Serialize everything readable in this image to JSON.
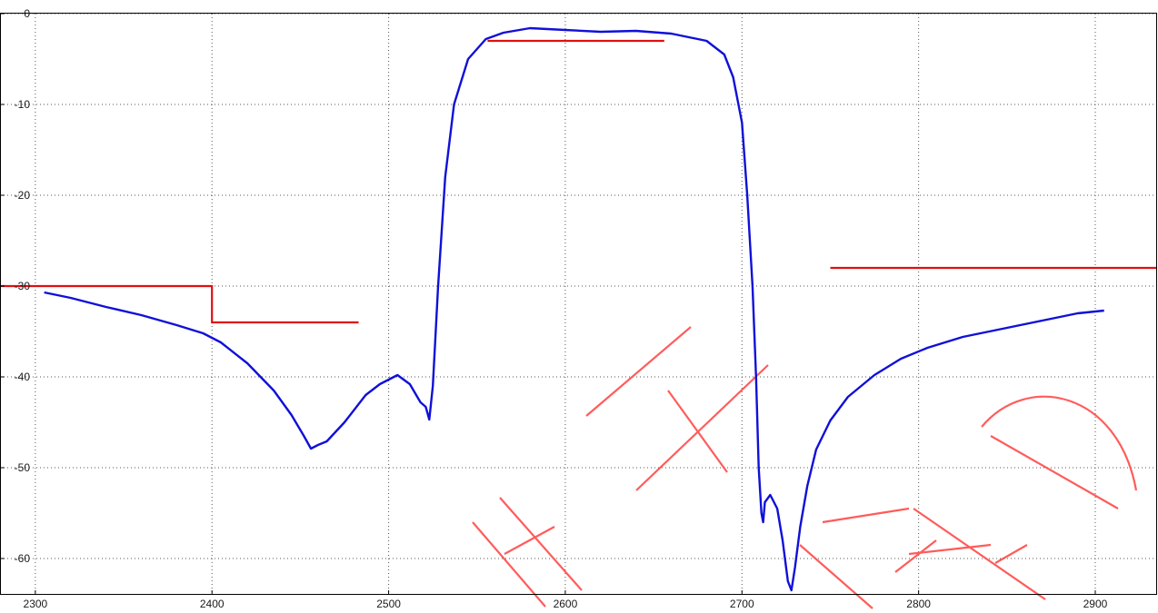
{
  "chart_data": {
    "type": "line",
    "title": "",
    "xlabel": "",
    "ylabel": "",
    "xlim": [
      2280,
      2935
    ],
    "ylim": [
      -64,
      0
    ],
    "x_ticks": [
      2300,
      2400,
      2500,
      2600,
      2700,
      2800,
      2900
    ],
    "y_ticks": [
      0,
      -10,
      -20,
      -30,
      -40,
      -50,
      -60
    ],
    "grid": true,
    "grid_style": "dotted",
    "colors": {
      "response": "#1010d8",
      "mask": "#e01010",
      "grid": "#555555",
      "watermark": "#ff4a4a"
    },
    "watermark": "HUAYER",
    "series": [
      {
        "role": "response",
        "x": [
          2305,
          2320,
          2340,
          2360,
          2380,
          2395,
          2405,
          2420,
          2435,
          2445,
          2452,
          2456,
          2460,
          2465,
          2475,
          2487,
          2495,
          2505,
          2512,
          2518,
          2521,
          2523,
          2525,
          2528,
          2532,
          2537,
          2545,
          2555,
          2565,
          2580,
          2600,
          2620,
          2640,
          2660,
          2680,
          2690,
          2695,
          2700,
          2703,
          2706,
          2708,
          2709.5,
          2711,
          2712,
          2713,
          2716,
          2720,
          2723,
          2726,
          2728,
          2730,
          2733,
          2737,
          2742,
          2750,
          2760,
          2775,
          2790,
          2805,
          2825,
          2845,
          2870,
          2890,
          2905
        ],
        "y": [
          -30.7,
          -31.3,
          -32.3,
          -33.2,
          -34.3,
          -35.2,
          -36.2,
          -38.5,
          -41.5,
          -44.2,
          -46.5,
          -47.9,
          -47.5,
          -47.1,
          -45.0,
          -42.0,
          -40.8,
          -39.8,
          -40.8,
          -42.8,
          -43.3,
          -44.7,
          -41.0,
          -30.0,
          -18.0,
          -10.0,
          -5.0,
          -2.8,
          -2.1,
          -1.6,
          -1.8,
          -2.0,
          -1.9,
          -2.2,
          -3.0,
          -4.5,
          -7.0,
          -12.0,
          -20.0,
          -30.0,
          -40.0,
          -50.0,
          -55.0,
          -56.0,
          -53.8,
          -53.0,
          -54.5,
          -58.0,
          -62.5,
          -63.5,
          -61.0,
          -56.5,
          -52.0,
          -48.0,
          -44.8,
          -42.2,
          -39.8,
          -38.0,
          -36.8,
          -35.6,
          -34.8,
          -33.8,
          -33.0,
          -32.7
        ]
      },
      {
        "role": "mask",
        "segments": [
          {
            "x": [
              2280,
              2400,
              2400,
              2483
            ],
            "y": [
              -30,
              -30,
              -34,
              -34
            ]
          },
          {
            "x": [
              2556,
              2656
            ],
            "y": [
              -3,
              -3
            ]
          },
          {
            "x": [
              2750,
              2935
            ],
            "y": [
              -28,
              -28
            ]
          }
        ]
      }
    ]
  }
}
